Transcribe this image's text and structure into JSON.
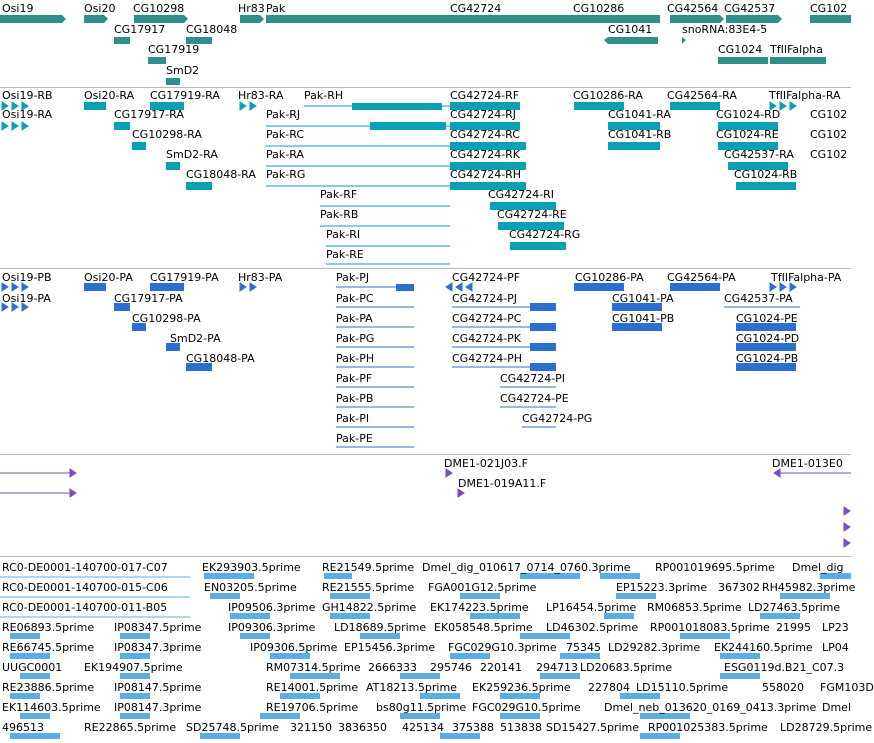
{
  "tracks": {
    "genes": [
      "Osi19",
      "Osi20",
      "CG10298",
      "Hr83",
      "Pak",
      "CG42724",
      "CG10286",
      "CG42564",
      "CG42537",
      "CG102",
      "CG17917",
      "CG18048",
      "CG1041",
      "snoRNA:83E4-5",
      "CG17919",
      "CG1024",
      "TfIIFalpha",
      "SmD2"
    ],
    "transcripts": [
      "Osi19-RB",
      "Osi20-RA",
      "CG17919-RA",
      "Hr83-RA",
      "Pak-RH",
      "CG42724-RF",
      "CG10286-RA",
      "CG42564-RA",
      "TfIIFalpha-RA",
      "Osi19-RA",
      "CG17917-RA",
      "Pak-RJ",
      "CG42724-RJ",
      "CG1041-RA",
      "CG1024-RD",
      "CG102",
      "CG10298-RA",
      "Pak-RC",
      "CG42724-RC",
      "CG1041-RB",
      "CG1024-RE",
      "CG102",
      "SmD2-RA",
      "Pak-RA",
      "CG42724-RK",
      "CG42537-RA",
      "CG102",
      "CG18048-RA",
      "Pak-RG",
      "CG42724-RH",
      "CG1024-RB",
      "Pak-RF",
      "CG42724-RI",
      "Pak-RB",
      "CG42724-RE",
      "Pak-RI",
      "CG42724-RG",
      "Pak-RE"
    ],
    "proteins": [
      "Osi19-PB",
      "Osi20-PA",
      "CG17919-PA",
      "Hr83-PA",
      "Pak-PJ",
      "CG42724-PF",
      "CG10286-PA",
      "CG42564-PA",
      "TfIIFalpha-PA",
      "Osi19-PA",
      "CG17917-PA",
      "Pak-PC",
      "CG42724-PJ",
      "CG1041-PA",
      "CG42537-PA",
      "CG10298-PA",
      "Pak-PA",
      "CG42724-PC",
      "CG1041-PB",
      "CG1024-PE",
      "SmD2-PA",
      "Pak-PG",
      "CG42724-PK",
      "CG1024-PD",
      "CG18048-PA",
      "Pak-PH",
      "CG42724-PH",
      "CG1024-PB",
      "Pak-PF",
      "CG42724-PI",
      "Pak-PB",
      "CG42724-PE",
      "Pak-PI",
      "CG42724-PG",
      "Pak-PE"
    ],
    "clones": [
      "DME1-021J03.F",
      "DME1-013E0",
      "DME1-019A11.F"
    ],
    "ests": [
      "RC0-DE0001-140700-017-C07",
      "EK293903.5prime",
      "RE21549.5prime",
      "Dmel_dig_010617_0714_0760.3prime",
      "RP001019695.5prime",
      "Dmel_dig",
      "RC0-DE0001-140700-015-C06",
      "EN03205.5prime",
      "RE21555.5prime",
      "FGA001G12.5prime",
      "EP15223.3prime",
      "367302",
      "RH45982.3prime",
      "RC0-DE0001-140700-011-B05",
      "IP09506.3prime",
      "GH14822.5prime",
      "EK174223.5prime",
      "LP16454.5prime",
      "RM06853.5prime",
      "LD27463.5prime",
      "RE06893.5prime",
      "IP08347.5prime",
      "IP09306.3prime",
      "LD18689.5prime",
      "EK058548.5prime",
      "LD46302.5prime",
      "RP001018083.5prime",
      "21995",
      "LP23",
      "RE66745.5prime",
      "IP08347.3prime",
      "IP09306.5prime",
      "EP15456.3prime",
      "FGC029G10.3prime",
      "75345",
      "LD29282.3prime",
      "EK244160.5prime",
      "LP04",
      "UUGC0001",
      "EK194907.5prime",
      "RM07314.5prime",
      "2666333",
      "295746",
      "220141",
      "294713",
      "LD20683.5prime",
      "ESG0119d.B21_C07.3",
      "RE23886.5prime",
      "IP08147.5prime",
      "RE14001.5prime",
      "AT18213.5prime",
      "EK259236.5prime",
      "227804",
      "LD15110.5prime",
      "558020",
      "FGM103D",
      "EK114603.5prime",
      "IP08147.3prime",
      "RE19706.5prime",
      "bs80g11.5prime",
      "FGC029G10.5prime",
      "Dmel_neb_013620_0169_0413.3prime",
      "Dmel",
      "496513",
      "RE22865.5prime",
      "SD25748.5prime",
      "321150",
      "3836350",
      "425134",
      "375388",
      "513838",
      "SD15427.5prime",
      "RP001025383.5prime",
      "LD28729.5prime"
    ]
  },
  "colors": {
    "gene": "#2f8f8f",
    "transcript": "#0aa0b4",
    "protein": "#2d6fd0",
    "clone": "#7a4fc0",
    "est": "#5aaee6",
    "border": "#b9b9b9"
  }
}
